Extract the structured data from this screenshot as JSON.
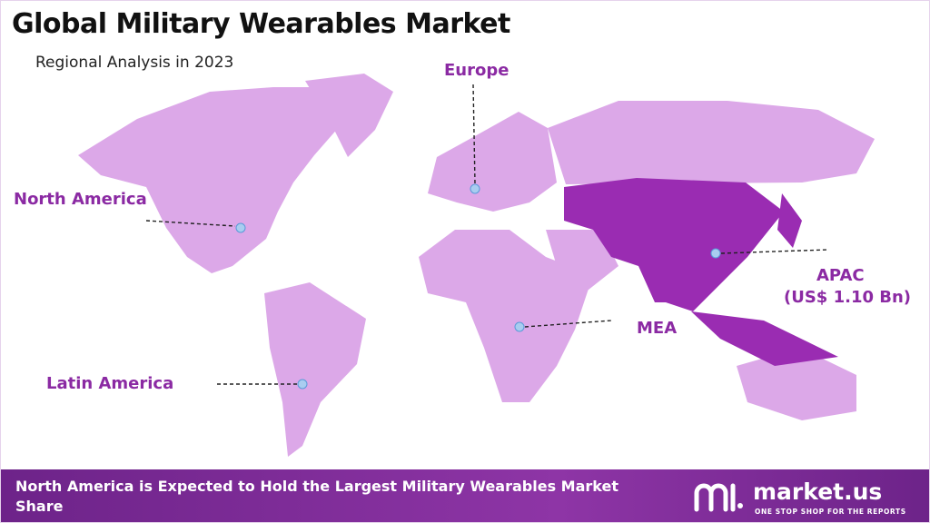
{
  "header": {
    "title": "Global Military Wearables Market",
    "subtitle": "Regional Analysis in 2023"
  },
  "regions": [
    {
      "label": "North America"
    },
    {
      "label": "Europe"
    },
    {
      "label": "Latin America"
    },
    {
      "label": "MEA"
    },
    {
      "label": "APAC",
      "value_label": "(US$ 1.10 Bn)"
    }
  ],
  "footer": {
    "text": "North America is Expected to Hold the Largest Military Wearables Market Share"
  },
  "logo": {
    "name": "market.us",
    "tagline": "ONE STOP SHOP FOR THE REPORTS"
  }
}
